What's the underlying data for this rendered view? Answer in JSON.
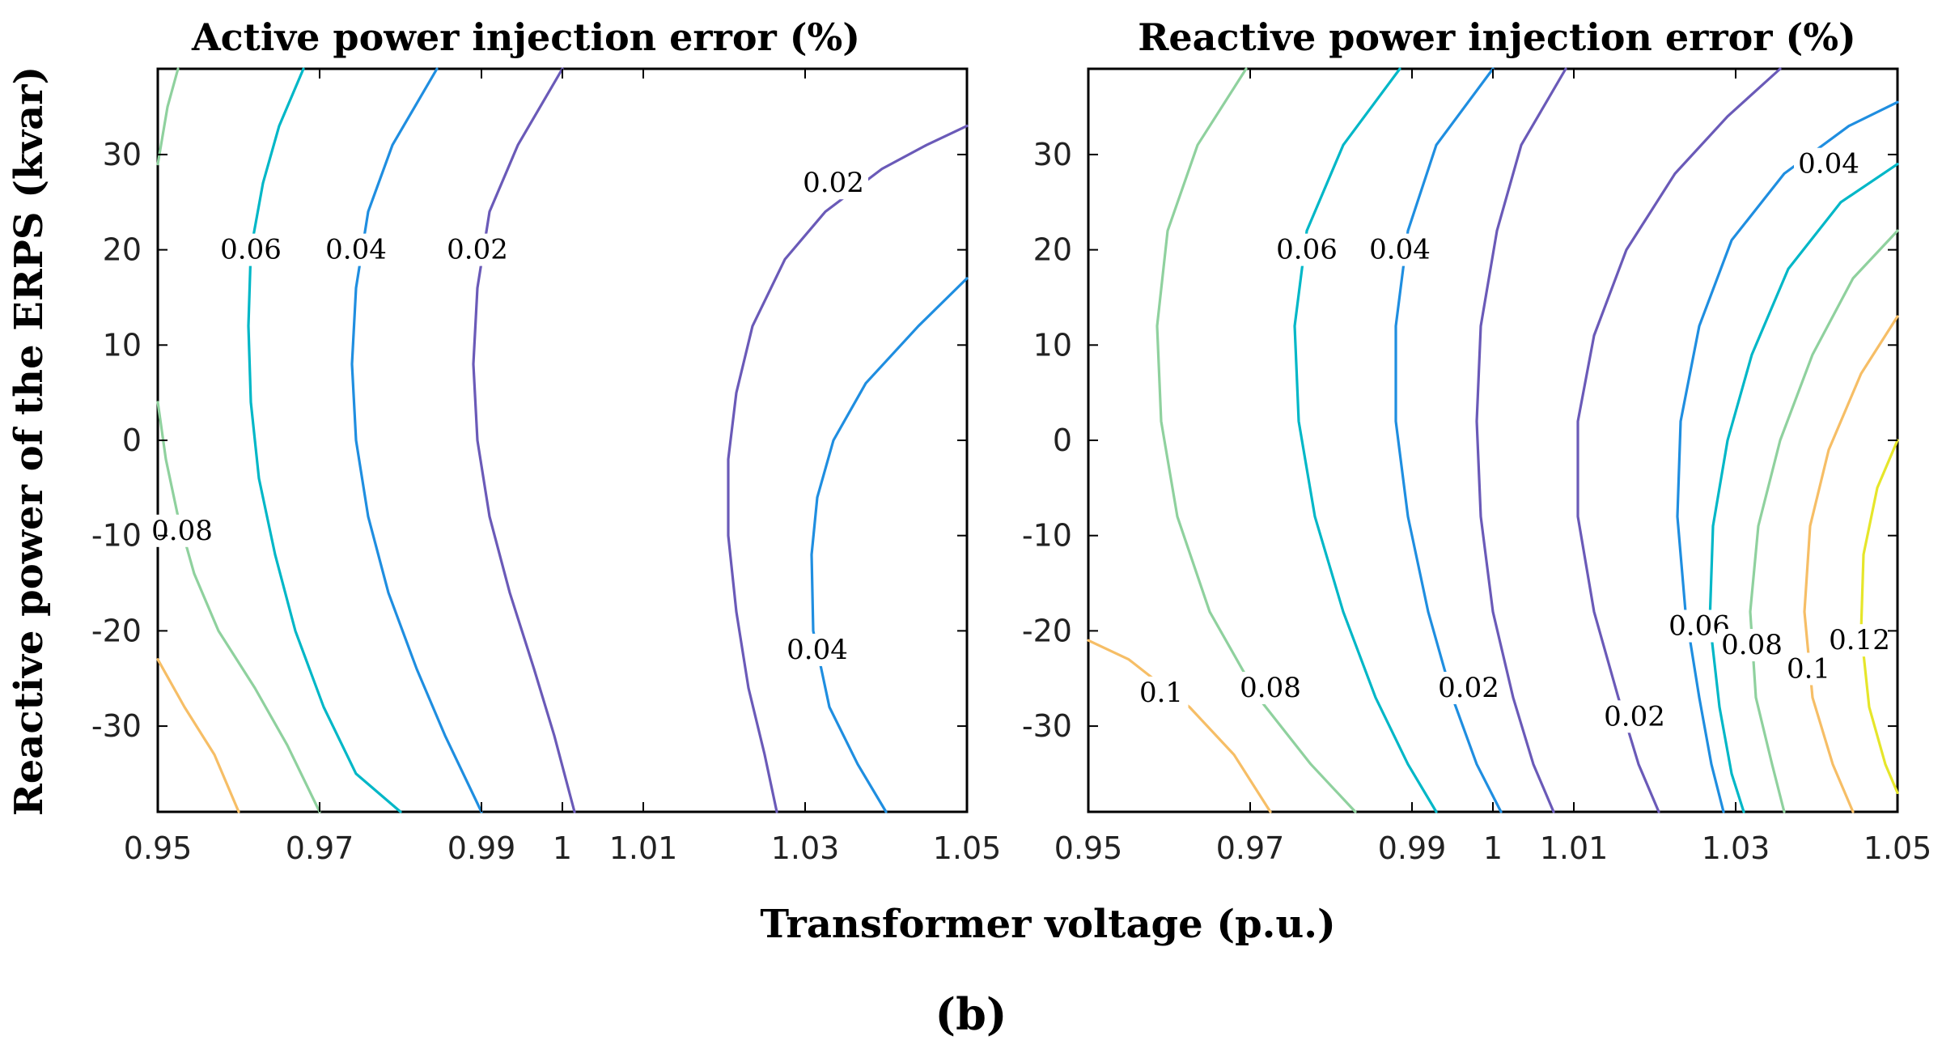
{
  "figure": {
    "panel_label_open": "(",
    "panel_label_letter": "b",
    "panel_label_close": ")",
    "shared_xlabel": "Transformer voltage (p.u.)",
    "shared_ylabel": "Reactive power of the ERPS (kvar)"
  },
  "chart_data": [
    {
      "type": "contour",
      "title": "Active power injection error (%)",
      "xlabel": "Transformer voltage (p.u.)",
      "ylabel": "Reactive power of the ERPS (kvar)",
      "xlim": [
        0.95,
        1.05
      ],
      "ylim": [
        -39,
        39
      ],
      "x_ticks": [
        0.95,
        0.97,
        0.99,
        1,
        1.01,
        1.03,
        1.05
      ],
      "x_tick_labels": [
        "0.95",
        "0.97",
        "0.99",
        "1",
        "1.01",
        "1.03",
        "1.05"
      ],
      "y_ticks": [
        30,
        20,
        10,
        0,
        -10,
        -20,
        -30
      ],
      "y_tick_labels": [
        "30",
        "20",
        "10",
        "0",
        "-10",
        "-20",
        "-30"
      ],
      "levels": [
        {
          "level": 0.1,
          "label": "",
          "color": "#f6be66",
          "points": [
            [
              0.95,
              -23
            ],
            [
              0.9533,
              -28
            ],
            [
              0.957,
              -33
            ],
            [
              0.96,
              -39
            ]
          ]
        },
        {
          "level": 0.08,
          "label": "0.08",
          "color": "#8fd19e",
          "label_at": [
            0.953,
            -9.5
          ],
          "points": [
            [
              0.9525,
              39
            ],
            [
              0.9512,
              35
            ],
            [
              0.95,
              29
            ]
          ],
          "points2": [
            [
              0.95,
              4
            ],
            [
              0.951,
              -2
            ],
            [
              0.9525,
              -8
            ],
            [
              0.9545,
              -14
            ],
            [
              0.9575,
              -20
            ],
            [
              0.962,
              -26
            ],
            [
              0.966,
              -32
            ],
            [
              0.97,
              -39
            ]
          ]
        },
        {
          "level": 0.06,
          "label": "0.06",
          "color": "#00b7c7",
          "label_at": [
            0.9615,
            20
          ],
          "points": [
            [
              0.968,
              39
            ],
            [
              0.965,
              33
            ],
            [
              0.963,
              27
            ],
            [
              0.9615,
              20
            ],
            [
              0.9612,
              12
            ],
            [
              0.9615,
              4
            ],
            [
              0.9625,
              -4
            ],
            [
              0.9645,
              -12
            ],
            [
              0.967,
              -20
            ],
            [
              0.9705,
              -28
            ],
            [
              0.9745,
              -35
            ],
            [
              0.98,
              -39
            ]
          ]
        },
        {
          "level": 0.04,
          "label": "0.04",
          "color": "#1f8ee0",
          "label_at": [
            0.9745,
            20
          ],
          "points": [
            [
              0.9845,
              39
            ],
            [
              0.979,
              31
            ],
            [
              0.976,
              24
            ],
            [
              0.9745,
              16
            ],
            [
              0.974,
              8
            ],
            [
              0.9745,
              0
            ],
            [
              0.976,
              -8
            ],
            [
              0.9785,
              -16
            ],
            [
              0.982,
              -24
            ],
            [
              0.9855,
              -31
            ],
            [
              0.99,
              -39
            ]
          ]
        },
        {
          "level": 0.02,
          "label": "0.02",
          "color": "#6a5ab8",
          "label_at": [
            0.9895,
            20
          ],
          "points": [
            [
              1.0,
              39
            ],
            [
              0.9945,
              31
            ],
            [
              0.991,
              24
            ],
            [
              0.9895,
              16
            ],
            [
              0.989,
              8
            ],
            [
              0.9895,
              0
            ],
            [
              0.991,
              -8
            ],
            [
              0.9935,
              -16
            ],
            [
              0.9965,
              -24
            ],
            [
              0.999,
              -31
            ],
            [
              1.0015,
              -39
            ]
          ]
        },
        {
          "level": 0.02,
          "label": "0.02",
          "color": "#6a5ab8",
          "label_at": [
            1.0335,
            27
          ],
          "points": [
            [
              1.05,
              33
            ],
            [
              1.045,
              31
            ],
            [
              1.0395,
              28.5
            ],
            [
              1.0325,
              24
            ],
            [
              1.0275,
              19
            ],
            [
              1.0235,
              12
            ],
            [
              1.0215,
              5
            ],
            [
              1.0205,
              -2
            ],
            [
              1.0205,
              -10
            ],
            [
              1.0215,
              -18
            ],
            [
              1.023,
              -26
            ],
            [
              1.025,
              -33
            ],
            [
              1.0265,
              -39
            ]
          ]
        },
        {
          "level": 0.04,
          "label": "0.04",
          "color": "#1f8ee0",
          "label_at": [
            1.0315,
            -22
          ],
          "points": [
            [
              1.05,
              17
            ],
            [
              1.044,
              12
            ],
            [
              1.0375,
              6
            ],
            [
              1.0335,
              0
            ],
            [
              1.0315,
              -6
            ],
            [
              1.0308,
              -12
            ],
            [
              1.031,
              -20
            ],
            [
              1.033,
              -28
            ],
            [
              1.0365,
              -34
            ],
            [
              1.04,
              -39
            ]
          ]
        }
      ]
    },
    {
      "type": "contour",
      "title": "Reactive power injection error (%)",
      "xlabel": "Transformer voltage (p.u.)",
      "ylabel": "Reactive power of the ERPS (kvar)",
      "xlim": [
        0.95,
        1.05
      ],
      "ylim": [
        -39,
        39
      ],
      "x_ticks": [
        0.95,
        0.97,
        0.99,
        1,
        1.01,
        1.03,
        1.05
      ],
      "x_tick_labels": [
        "0.95",
        "0.97",
        "0.99",
        "1",
        "1.01",
        "1.03",
        "1.05"
      ],
      "y_ticks": [
        30,
        20,
        10,
        0,
        -10,
        -20,
        -30
      ],
      "y_tick_labels": [
        "30",
        "20",
        "10",
        "0",
        "-10",
        "-20",
        "-30"
      ],
      "levels": [
        {
          "level": 0.1,
          "label": "0.1",
          "color": "#f6be66",
          "label_at": [
            0.959,
            -26.5
          ],
          "points": [
            [
              0.95,
              -21
            ],
            [
              0.955,
              -23
            ],
            [
              0.9625,
              -28
            ],
            [
              0.968,
              -33
            ],
            [
              0.9725,
              -39
            ]
          ]
        },
        {
          "level": 0.08,
          "label": "0.08",
          "color": "#8fd19e",
          "label_at": [
            0.9725,
            -26
          ],
          "points": [
            [
              0.9695,
              39
            ],
            [
              0.9635,
              31
            ],
            [
              0.9598,
              22
            ],
            [
              0.9585,
              12
            ],
            [
              0.959,
              2
            ],
            [
              0.961,
              -8
            ],
            [
              0.965,
              -18
            ],
            [
              0.971,
              -27
            ],
            [
              0.9775,
              -34
            ],
            [
              0.983,
              -39
            ]
          ]
        },
        {
          "level": 0.06,
          "label": "0.06",
          "color": "#00b7c7",
          "label_at": [
            0.977,
            20
          ],
          "points": [
            [
              0.9885,
              39
            ],
            [
              0.9815,
              31
            ],
            [
              0.977,
              22
            ],
            [
              0.9755,
              12
            ],
            [
              0.976,
              2
            ],
            [
              0.978,
              -8
            ],
            [
              0.9815,
              -18
            ],
            [
              0.9855,
              -27
            ],
            [
              0.9895,
              -34
            ],
            [
              0.993,
              -39
            ]
          ]
        },
        {
          "level": 0.04,
          "label": "0.04",
          "color": "#1f8ee0",
          "label_at": [
            0.9885,
            20
          ],
          "points": [
            [
              1.0,
              39
            ],
            [
              0.993,
              31
            ],
            [
              0.9895,
              22
            ],
            [
              0.988,
              12
            ],
            [
              0.988,
              2
            ],
            [
              0.9895,
              -8
            ],
            [
              0.992,
              -18
            ],
            [
              0.995,
              -27
            ],
            [
              0.998,
              -34
            ],
            [
              1.001,
              -39
            ]
          ]
        },
        {
          "level": 0.02,
          "label": "0.02",
          "color": "#6a5ab8",
          "label_at": [
            0.997,
            -26
          ],
          "points": [
            [
              1.009,
              39
            ],
            [
              1.0035,
              31
            ],
            [
              1.0005,
              22
            ],
            [
              0.9985,
              12
            ],
            [
              0.998,
              2
            ],
            [
              0.9985,
              -8
            ],
            [
              1.0,
              -18
            ],
            [
              1.0025,
              -27
            ],
            [
              1.005,
              -34
            ],
            [
              1.0075,
              -39
            ]
          ]
        },
        {
          "level": 0.02,
          "label": "0.02",
          "color": "#6a5ab8",
          "label_at": [
            1.0175,
            -29
          ],
          "points": [
            [
              1.0355,
              39
            ],
            [
              1.029,
              34
            ],
            [
              1.0225,
              28
            ],
            [
              1.0165,
              20
            ],
            [
              1.0125,
              11
            ],
            [
              1.0105,
              2
            ],
            [
              1.0105,
              -8
            ],
            [
              1.0125,
              -18
            ],
            [
              1.0155,
              -27
            ],
            [
              1.018,
              -34
            ],
            [
              1.0205,
              -39
            ]
          ]
        },
        {
          "level": 0.04,
          "label": "0.04",
          "color": "#1f8ee0",
          "label_at": [
            1.0415,
            29
          ],
          "points": [
            [
              1.05,
              35.5
            ],
            [
              1.044,
              33
            ],
            [
              1.036,
              28
            ],
            [
              1.0295,
              21
            ],
            [
              1.0255,
              12
            ],
            [
              1.0232,
              2
            ],
            [
              1.0228,
              -8
            ],
            [
              1.0238,
              -18
            ],
            [
              1.0255,
              -27
            ],
            [
              1.027,
              -34
            ],
            [
              1.0285,
              -39
            ]
          ]
        },
        {
          "level": 0.06,
          "label": "0.06",
          "color": "#00b7c7",
          "label_at": [
            1.0255,
            -19.5
          ],
          "points": [
            [
              1.05,
              29
            ],
            [
              1.043,
              25
            ],
            [
              1.0365,
              18
            ],
            [
              1.032,
              9
            ],
            [
              1.029,
              0
            ],
            [
              1.0272,
              -9
            ],
            [
              1.0268,
              -19
            ],
            [
              1.028,
              -28
            ],
            [
              1.0295,
              -35
            ],
            [
              1.031,
              -39
            ]
          ]
        },
        {
          "level": 0.08,
          "label": "0.08",
          "color": "#8fd19e",
          "label_at": [
            1.032,
            -21.5
          ],
          "points": [
            [
              1.05,
              22
            ],
            [
              1.0445,
              17
            ],
            [
              1.0395,
              9
            ],
            [
              1.0355,
              0
            ],
            [
              1.0328,
              -9
            ],
            [
              1.0318,
              -18
            ],
            [
              1.0325,
              -27
            ],
            [
              1.0345,
              -34
            ],
            [
              1.036,
              -39
            ]
          ]
        },
        {
          "level": 0.1,
          "label": "0.1",
          "color": "#f6be66",
          "label_at": [
            1.039,
            -24
          ],
          "points": [
            [
              1.05,
              13
            ],
            [
              1.0455,
              7
            ],
            [
              1.0415,
              -1
            ],
            [
              1.0392,
              -9
            ],
            [
              1.0385,
              -18
            ],
            [
              1.0395,
              -27
            ],
            [
              1.042,
              -34
            ],
            [
              1.0445,
              -39
            ]
          ]
        },
        {
          "level": 0.12,
          "label": "0.12",
          "color": "#e6e62a",
          "label_at": [
            1.0453,
            -21
          ],
          "points": [
            [
              1.05,
              0
            ],
            [
              1.0475,
              -5
            ],
            [
              1.0458,
              -12
            ],
            [
              1.0455,
              -20
            ],
            [
              1.0465,
              -28
            ],
            [
              1.0485,
              -34
            ],
            [
              1.05,
              -37
            ]
          ]
        }
      ]
    }
  ]
}
